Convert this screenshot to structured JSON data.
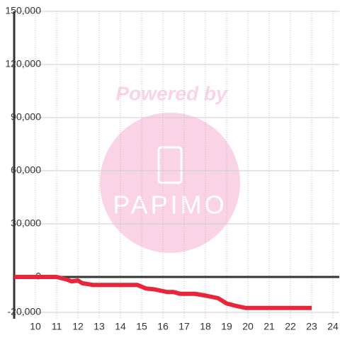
{
  "chart_data": {
    "type": "line",
    "x": [
      9,
      11,
      11.5,
      11.7,
      12,
      12.2,
      12.7,
      14.8,
      15.2,
      15.6,
      16.2,
      16.5,
      16.8,
      17.5,
      18,
      18.6,
      19,
      19.5,
      19.9,
      23
    ],
    "series": [
      {
        "color": "#e8253a",
        "values": [
          0,
          0,
          -1500,
          -2500,
          -2000,
          -3500,
          -4500,
          -4500,
          -6500,
          -7000,
          -8500,
          -8500,
          -9500,
          -9500,
          -10500,
          -12000,
          -15000,
          -16500,
          -17500,
          -17500
        ]
      }
    ],
    "xlim": [
      9,
      24.3
    ],
    "ylim": [
      -20000,
      150000
    ],
    "xticks": [
      10,
      11,
      12,
      13,
      14,
      15,
      16,
      17,
      18,
      19,
      20,
      21,
      22,
      23,
      24
    ],
    "yticks": [
      {
        "value": -20000,
        "label": "-20,000"
      },
      0,
      {
        "value": 30000,
        "label": "30,000"
      },
      {
        "value": 60000,
        "label": "60,000"
      },
      {
        "value": 90000,
        "label": "90,000"
      },
      {
        "value": 120000,
        "label": "120,000"
      },
      {
        "value": 150000,
        "label": "150,000"
      }
    ],
    "grid": true,
    "watermark": [
      "Powered by",
      "PAPIMO"
    ]
  }
}
